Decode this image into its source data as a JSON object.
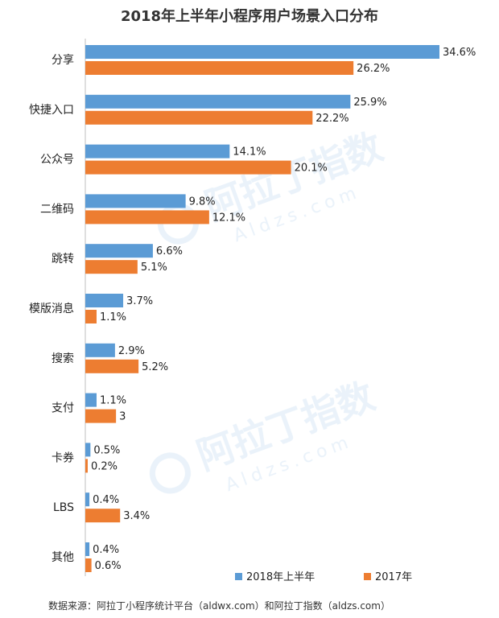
{
  "chart_data": {
    "type": "bar",
    "orientation": "horizontal",
    "title": "2018年上半年小程序用户场景入口分布",
    "categories": [
      "分享",
      "快捷入口",
      "公众号",
      "二维码",
      "跳转",
      "模版消息",
      "搜索",
      "支付",
      "卡券",
      "LBS",
      "其他"
    ],
    "series": [
      {
        "name": "2018年上半年",
        "color": "#5B9BD5",
        "values": [
          34.6,
          25.9,
          14.1,
          9.8,
          6.6,
          3.7,
          2.9,
          1.1,
          0.5,
          0.4,
          0.4
        ],
        "labels": [
          "34.6%",
          "25.9%",
          "14.1%",
          "9.8%",
          "6.6%",
          "3.7%",
          "2.9%",
          "1.1%",
          "0.5%",
          "0.4%",
          "0.4%"
        ]
      },
      {
        "name": "2017年",
        "color": "#ED7D31",
        "values": [
          26.2,
          22.2,
          20.1,
          12.1,
          5.1,
          1.1,
          5.2,
          3,
          0.2,
          3.4,
          0.6
        ],
        "labels": [
          "26.2%",
          "22.2%",
          "20.1%",
          "12.1%",
          "5.1%",
          "1.1%",
          "5.2%",
          "3",
          "0.2%",
          "3.4%",
          "0.6%"
        ]
      }
    ],
    "xlim": [
      0,
      35
    ],
    "grid": false,
    "legend_position": "bottom-right"
  },
  "watermark": {
    "brand": "阿拉丁指数",
    "domain": "Aldzs.com"
  },
  "source_note": "数据来源：阿拉丁小程序统计平台（aldwx.com）和阿拉丁指数（aldzs.com）"
}
